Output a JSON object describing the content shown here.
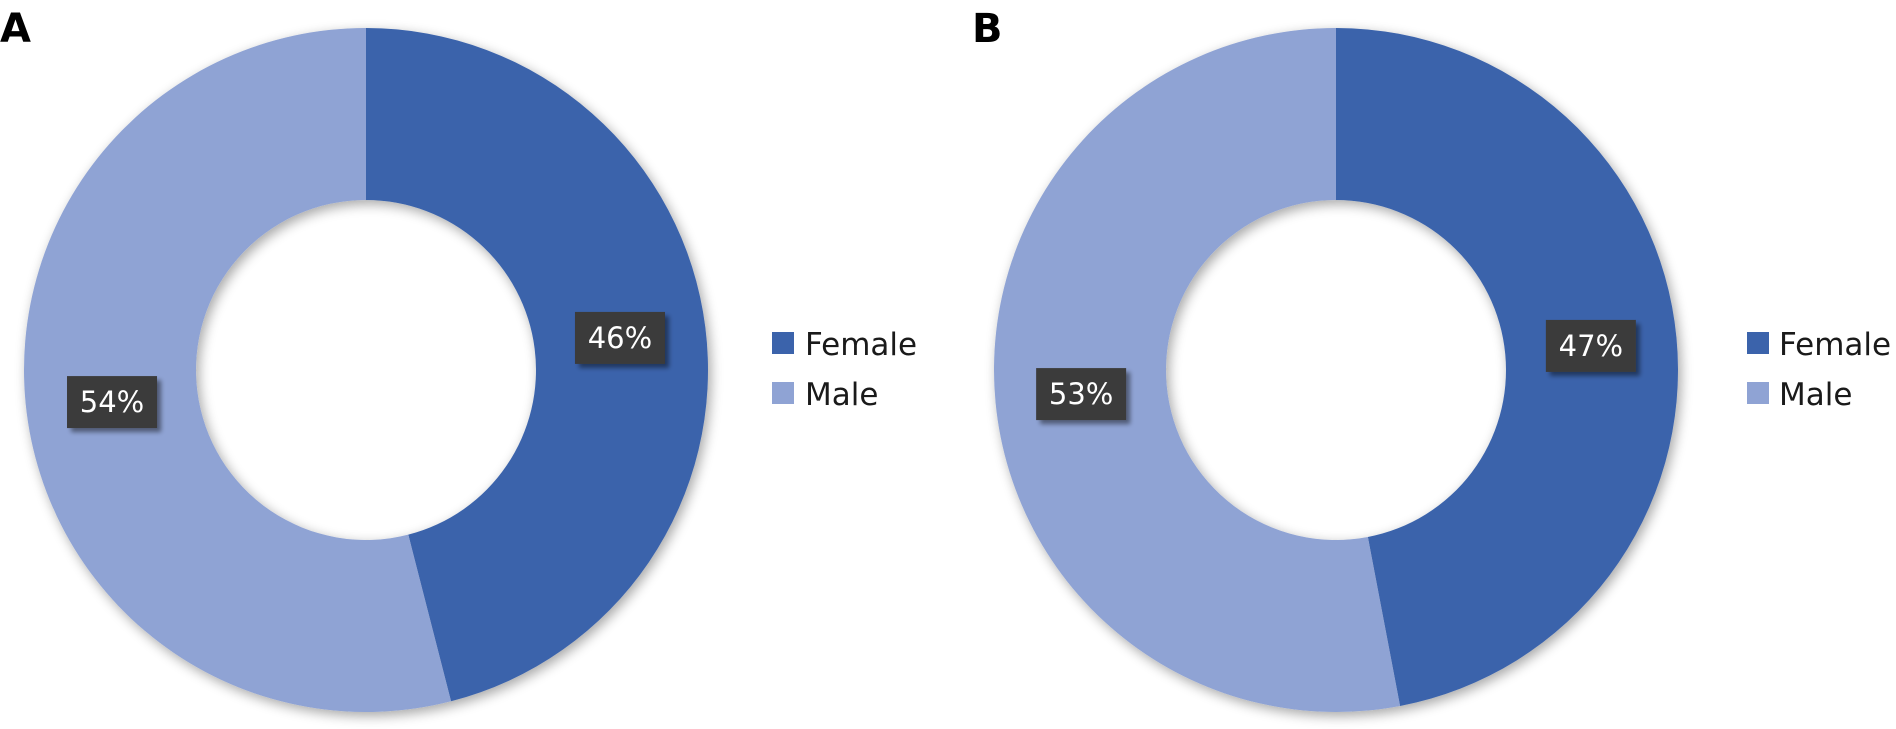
{
  "chart_data": [
    {
      "type": "pie",
      "style": "donut",
      "panel_label": "A",
      "title": "",
      "categories": [
        "Female",
        "Male"
      ],
      "values": [
        46,
        54
      ],
      "labels": [
        "46%",
        "54%"
      ],
      "colors": [
        "#3b63ab",
        "#8fa3d4"
      ],
      "legend": {
        "placement": "right",
        "entries": [
          "Female",
          "Male"
        ]
      }
    },
    {
      "type": "pie",
      "style": "donut",
      "panel_label": "B",
      "title": "",
      "categories": [
        "Female",
        "Male"
      ],
      "values": [
        47,
        53
      ],
      "labels": [
        "47%",
        "53%"
      ],
      "colors": [
        "#3b63ab",
        "#8fa3d4"
      ],
      "legend": {
        "placement": "right",
        "entries": [
          "Female",
          "Male"
        ]
      }
    }
  ],
  "colors": {
    "female": "#3b63ab",
    "male": "#8fa3d4",
    "label_box": "#3a3a3a",
    "label_text": "#ffffff"
  }
}
